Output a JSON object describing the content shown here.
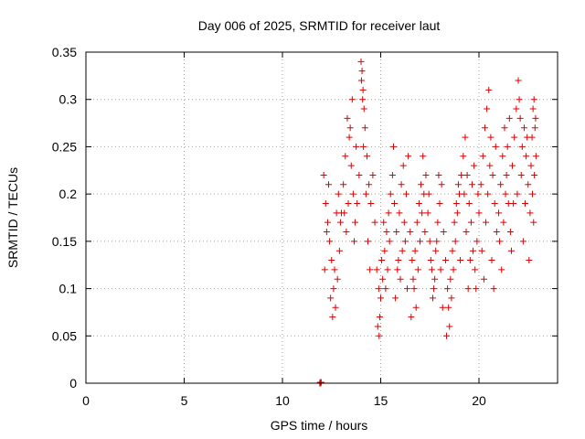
{
  "chart_data": {
    "type": "scatter",
    "title": "Day 006 of 2025, SRMTID for receiver laut",
    "xlabel": "GPS time / hours",
    "ylabel": "SRMTID / TECUs",
    "xlim": [
      0,
      24
    ],
    "ylim": [
      0,
      0.35
    ],
    "xticks": [
      0,
      5,
      10,
      15,
      20
    ],
    "xtick_labels": [
      "0",
      "5",
      "10",
      "15",
      "20"
    ],
    "yticks": [
      0,
      0.05,
      0.1,
      0.15,
      0.2,
      0.25,
      0.3,
      0.35
    ],
    "ytick_labels": [
      "0",
      "0.05",
      "0.1",
      "0.15",
      "0.2",
      "0.25",
      "0.3",
      "0.35"
    ],
    "grid": true,
    "marker": "+",
    "color": "#dd0000",
    "series": [
      {
        "points": [
          [
            11.9,
            0.0
          ],
          [
            11.92,
            0.001
          ],
          [
            11.95,
            0.0
          ],
          [
            11.97,
            0.001
          ],
          [
            12.1,
            0.22
          ],
          [
            12.2,
            0.19
          ],
          [
            12.3,
            0.17
          ],
          [
            12.4,
            0.15
          ],
          [
            12.5,
            0.13
          ],
          [
            12.6,
            0.1
          ],
          [
            12.7,
            0.08
          ],
          [
            12.8,
            0.11
          ],
          [
            12.9,
            0.14
          ],
          [
            13.0,
            0.18
          ],
          [
            12.15,
            0.12
          ],
          [
            12.25,
            0.16
          ],
          [
            12.35,
            0.21
          ],
          [
            12.45,
            0.09
          ],
          [
            12.55,
            0.07
          ],
          [
            12.65,
            0.12
          ],
          [
            12.75,
            0.18
          ],
          [
            12.85,
            0.2
          ],
          [
            12.95,
            0.17
          ],
          [
            13.1,
            0.21
          ],
          [
            13.2,
            0.24
          ],
          [
            13.3,
            0.28
          ],
          [
            13.4,
            0.26
          ],
          [
            13.5,
            0.23
          ],
          [
            13.6,
            0.2
          ],
          [
            13.7,
            0.17
          ],
          [
            13.8,
            0.19
          ],
          [
            13.9,
            0.22
          ],
          [
            13.15,
            0.18
          ],
          [
            13.25,
            0.16
          ],
          [
            13.35,
            0.19
          ],
          [
            13.45,
            0.27
          ],
          [
            13.55,
            0.3
          ],
          [
            13.65,
            0.15
          ],
          [
            13.75,
            0.25
          ],
          [
            14.0,
            0.34
          ],
          [
            14.05,
            0.33
          ],
          [
            14.1,
            0.31
          ],
          [
            14.15,
            0.29
          ],
          [
            14.2,
            0.27
          ],
          [
            14.3,
            0.24
          ],
          [
            14.4,
            0.21
          ],
          [
            14.5,
            0.19
          ],
          [
            14.6,
            0.22
          ],
          [
            14.7,
            0.17
          ],
          [
            14.02,
            0.32
          ],
          [
            14.08,
            0.3
          ],
          [
            14.12,
            0.25
          ],
          [
            14.25,
            0.2
          ],
          [
            14.35,
            0.15
          ],
          [
            14.45,
            0.12
          ],
          [
            14.8,
            0.12
          ],
          [
            14.9,
            0.1
          ],
          [
            14.95,
            0.07
          ],
          [
            15.0,
            0.09
          ],
          [
            15.1,
            0.11
          ],
          [
            15.2,
            0.14
          ],
          [
            15.3,
            0.16
          ],
          [
            15.4,
            0.18
          ],
          [
            15.5,
            0.2
          ],
          [
            14.85,
            0.06
          ],
          [
            14.92,
            0.05
          ],
          [
            15.05,
            0.13
          ],
          [
            15.15,
            0.17
          ],
          [
            15.25,
            0.1
          ],
          [
            15.35,
            0.12
          ],
          [
            15.45,
            0.15
          ],
          [
            15.6,
            0.22
          ],
          [
            15.7,
            0.19
          ],
          [
            15.8,
            0.16
          ],
          [
            15.9,
            0.13
          ],
          [
            16.0,
            0.11
          ],
          [
            16.1,
            0.14
          ],
          [
            16.2,
            0.17
          ],
          [
            16.3,
            0.2
          ],
          [
            16.4,
            0.24
          ],
          [
            15.65,
            0.25
          ],
          [
            15.75,
            0.09
          ],
          [
            15.85,
            0.12
          ],
          [
            15.95,
            0.18
          ],
          [
            16.05,
            0.21
          ],
          [
            16.15,
            0.23
          ],
          [
            16.25,
            0.15
          ],
          [
            16.35,
            0.1
          ],
          [
            16.5,
            0.16
          ],
          [
            16.6,
            0.13
          ],
          [
            16.7,
            0.1
          ],
          [
            16.8,
            0.08
          ],
          [
            16.9,
            0.12
          ],
          [
            17.0,
            0.15
          ],
          [
            17.1,
            0.18
          ],
          [
            17.2,
            0.2
          ],
          [
            17.3,
            0.22
          ],
          [
            16.55,
            0.07
          ],
          [
            16.65,
            0.11
          ],
          [
            16.75,
            0.14
          ],
          [
            16.85,
            0.17
          ],
          [
            16.95,
            0.19
          ],
          [
            17.05,
            0.21
          ],
          [
            17.15,
            0.24
          ],
          [
            17.25,
            0.16
          ],
          [
            17.4,
            0.18
          ],
          [
            17.5,
            0.15
          ],
          [
            17.6,
            0.12
          ],
          [
            17.7,
            0.1
          ],
          [
            17.8,
            0.14
          ],
          [
            17.9,
            0.17
          ],
          [
            18.0,
            0.19
          ],
          [
            18.1,
            0.21
          ],
          [
            18.2,
            0.16
          ],
          [
            17.45,
            0.2
          ],
          [
            17.55,
            0.13
          ],
          [
            17.65,
            0.09
          ],
          [
            17.75,
            0.11
          ],
          [
            17.85,
            0.15
          ],
          [
            17.95,
            0.22
          ],
          [
            18.05,
            0.12
          ],
          [
            18.15,
            0.08
          ],
          [
            18.3,
            0.13
          ],
          [
            18.4,
            0.1
          ],
          [
            18.5,
            0.06
          ],
          [
            18.6,
            0.09
          ],
          [
            18.7,
            0.12
          ],
          [
            18.8,
            0.15
          ],
          [
            18.9,
            0.18
          ],
          [
            19.0,
            0.2
          ],
          [
            19.1,
            0.22
          ],
          [
            18.35,
            0.05
          ],
          [
            18.45,
            0.08
          ],
          [
            18.55,
            0.11
          ],
          [
            18.65,
            0.14
          ],
          [
            18.75,
            0.17
          ],
          [
            18.85,
            0.19
          ],
          [
            18.95,
            0.21
          ],
          [
            19.05,
            0.13
          ],
          [
            19.2,
            0.24
          ],
          [
            19.3,
            0.26
          ],
          [
            19.4,
            0.22
          ],
          [
            19.5,
            0.19
          ],
          [
            19.6,
            0.17
          ],
          [
            19.7,
            0.14
          ],
          [
            19.8,
            0.12
          ],
          [
            19.9,
            0.15
          ],
          [
            20.0,
            0.18
          ],
          [
            19.25,
            0.2
          ],
          [
            19.35,
            0.16
          ],
          [
            19.45,
            0.1
          ],
          [
            19.55,
            0.13
          ],
          [
            19.65,
            0.21
          ],
          [
            19.75,
            0.23
          ],
          [
            19.85,
            0.1
          ],
          [
            19.95,
            0.2
          ],
          [
            20.1,
            0.21
          ],
          [
            20.2,
            0.24
          ],
          [
            20.3,
            0.27
          ],
          [
            20.4,
            0.29
          ],
          [
            20.5,
            0.31
          ],
          [
            20.6,
            0.26
          ],
          [
            20.7,
            0.22
          ],
          [
            20.8,
            0.19
          ],
          [
            20.9,
            0.16
          ],
          [
            20.15,
            0.14
          ],
          [
            20.25,
            0.11
          ],
          [
            20.35,
            0.17
          ],
          [
            20.45,
            0.2
          ],
          [
            20.55,
            0.23
          ],
          [
            20.65,
            0.13
          ],
          [
            20.75,
            0.1
          ],
          [
            20.85,
            0.25
          ],
          [
            21.0,
            0.18
          ],
          [
            21.1,
            0.21
          ],
          [
            21.2,
            0.24
          ],
          [
            21.3,
            0.27
          ],
          [
            21.4,
            0.22
          ],
          [
            21.5,
            0.19
          ],
          [
            21.6,
            0.16
          ],
          [
            21.7,
            0.23
          ],
          [
            21.8,
            0.26
          ],
          [
            21.05,
            0.15
          ],
          [
            21.15,
            0.12
          ],
          [
            21.25,
            0.17
          ],
          [
            21.35,
            0.2
          ],
          [
            21.45,
            0.25
          ],
          [
            21.55,
            0.28
          ],
          [
            21.65,
            0.14
          ],
          [
            21.75,
            0.19
          ],
          [
            21.9,
            0.29
          ],
          [
            22.0,
            0.32
          ],
          [
            22.05,
            0.3
          ],
          [
            22.1,
            0.28
          ],
          [
            22.2,
            0.25
          ],
          [
            22.3,
            0.27
          ],
          [
            22.4,
            0.24
          ],
          [
            22.5,
            0.21
          ],
          [
            22.6,
            0.18
          ],
          [
            21.95,
            0.2
          ],
          [
            22.15,
            0.22
          ],
          [
            22.25,
            0.15
          ],
          [
            22.35,
            0.19
          ],
          [
            22.45,
            0.26
          ],
          [
            22.55,
            0.13
          ],
          [
            22.65,
            0.23
          ],
          [
            22.7,
            0.26
          ],
          [
            22.75,
            0.29
          ],
          [
            22.8,
            0.3
          ],
          [
            22.85,
            0.27
          ],
          [
            22.9,
            0.24
          ],
          [
            22.72,
            0.2
          ],
          [
            22.78,
            0.17
          ],
          [
            22.82,
            0.22
          ],
          [
            22.88,
            0.28
          ]
        ]
      }
    ]
  }
}
